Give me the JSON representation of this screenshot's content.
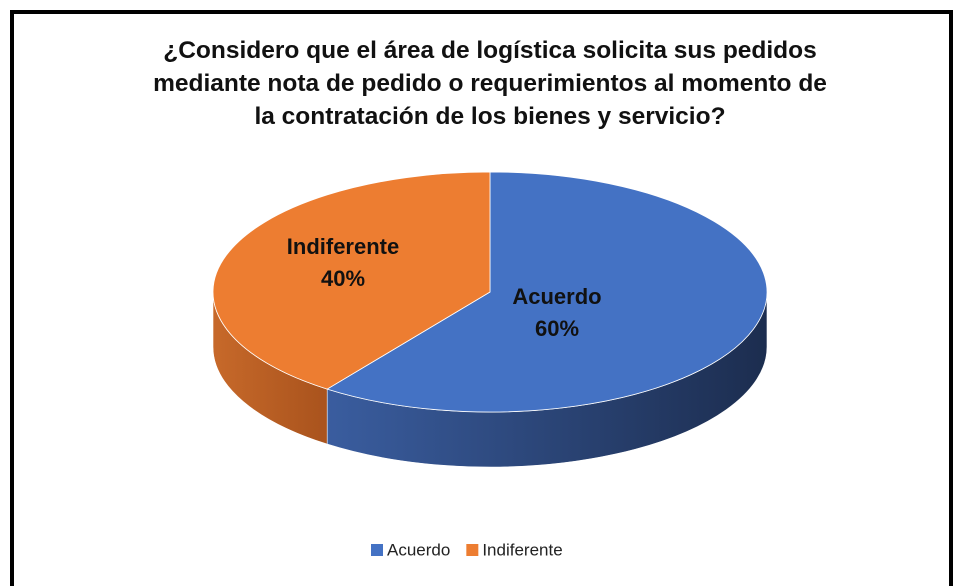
{
  "chart_data": {
    "type": "pie",
    "title": "¿Considero que el área de logística solicita sus pedidos mediante nota de pedido o requerimientos al momento de la contratación de los bienes y servicio?",
    "categories": [
      "Acuerdo",
      "Indiferente"
    ],
    "values": [
      60,
      40
    ],
    "value_labels": [
      "60%",
      "40%"
    ],
    "colors": [
      "#4472c4",
      "#ed7d31"
    ],
    "legend": "bottom"
  }
}
